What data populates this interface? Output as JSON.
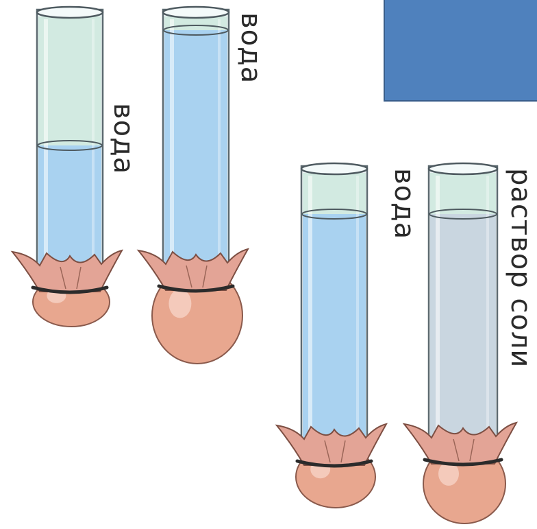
{
  "colors": {
    "panel": "#4f81bd",
    "glass": "#eef5f6",
    "water": "#a9d2f0",
    "air": "#cce8dd",
    "salt_solution": "#c9d6e0",
    "membrane": "#e3a496",
    "bulb": "#e8a78f",
    "band": "#2b2b2b"
  },
  "tubes": [
    {
      "id": "tube-1",
      "label": "вода",
      "contents": "water",
      "liquid_level": "low",
      "bulb": "small"
    },
    {
      "id": "tube-2",
      "label": "вода",
      "contents": "water",
      "liquid_level": "high",
      "bulb": "swollen"
    },
    {
      "id": "tube-3",
      "label": "вода",
      "contents": "water",
      "liquid_level": "high",
      "bulb": "medium"
    },
    {
      "id": "tube-4",
      "label": "раствор соли",
      "contents": "salt_solution",
      "liquid_level": "high",
      "bulb": "swollen"
    }
  ]
}
